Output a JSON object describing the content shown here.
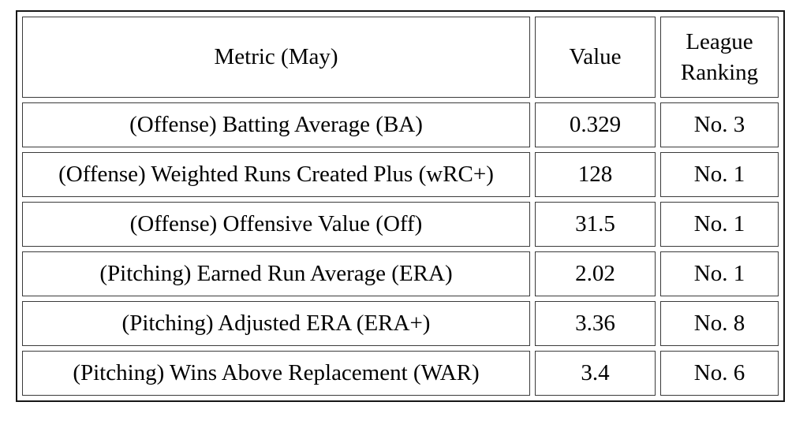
{
  "page": {
    "background_color": "#ffffff",
    "text_color": "#000000",
    "outer_border_color": "#161616",
    "cell_border_color": "#3b3b3b"
  },
  "table": {
    "headers": [
      "Metric (May)",
      "Value",
      "League Ranking"
    ],
    "rows": [
      {
        "metric": "(Offense) Batting Average (BA)",
        "value": "0.329",
        "ranking": "No. 3"
      },
      {
        "metric": "(Offense) Weighted Runs Created Plus (wRC+)",
        "value": "128",
        "ranking": "No. 1"
      },
      {
        "metric": "(Offense) Offensive Value (Off)",
        "value": "31.5",
        "ranking": "No. 1"
      },
      {
        "metric": "(Pitching) Earned Run Average (ERA)",
        "value": "2.02",
        "ranking": "No. 1"
      },
      {
        "metric": "(Pitching) Adjusted ERA (ERA+)",
        "value": "3.36",
        "ranking": "No. 8"
      },
      {
        "metric": "(Pitching) Wins Above Replacement (WAR)",
        "value": "3.4",
        "ranking": "No. 6"
      }
    ]
  }
}
